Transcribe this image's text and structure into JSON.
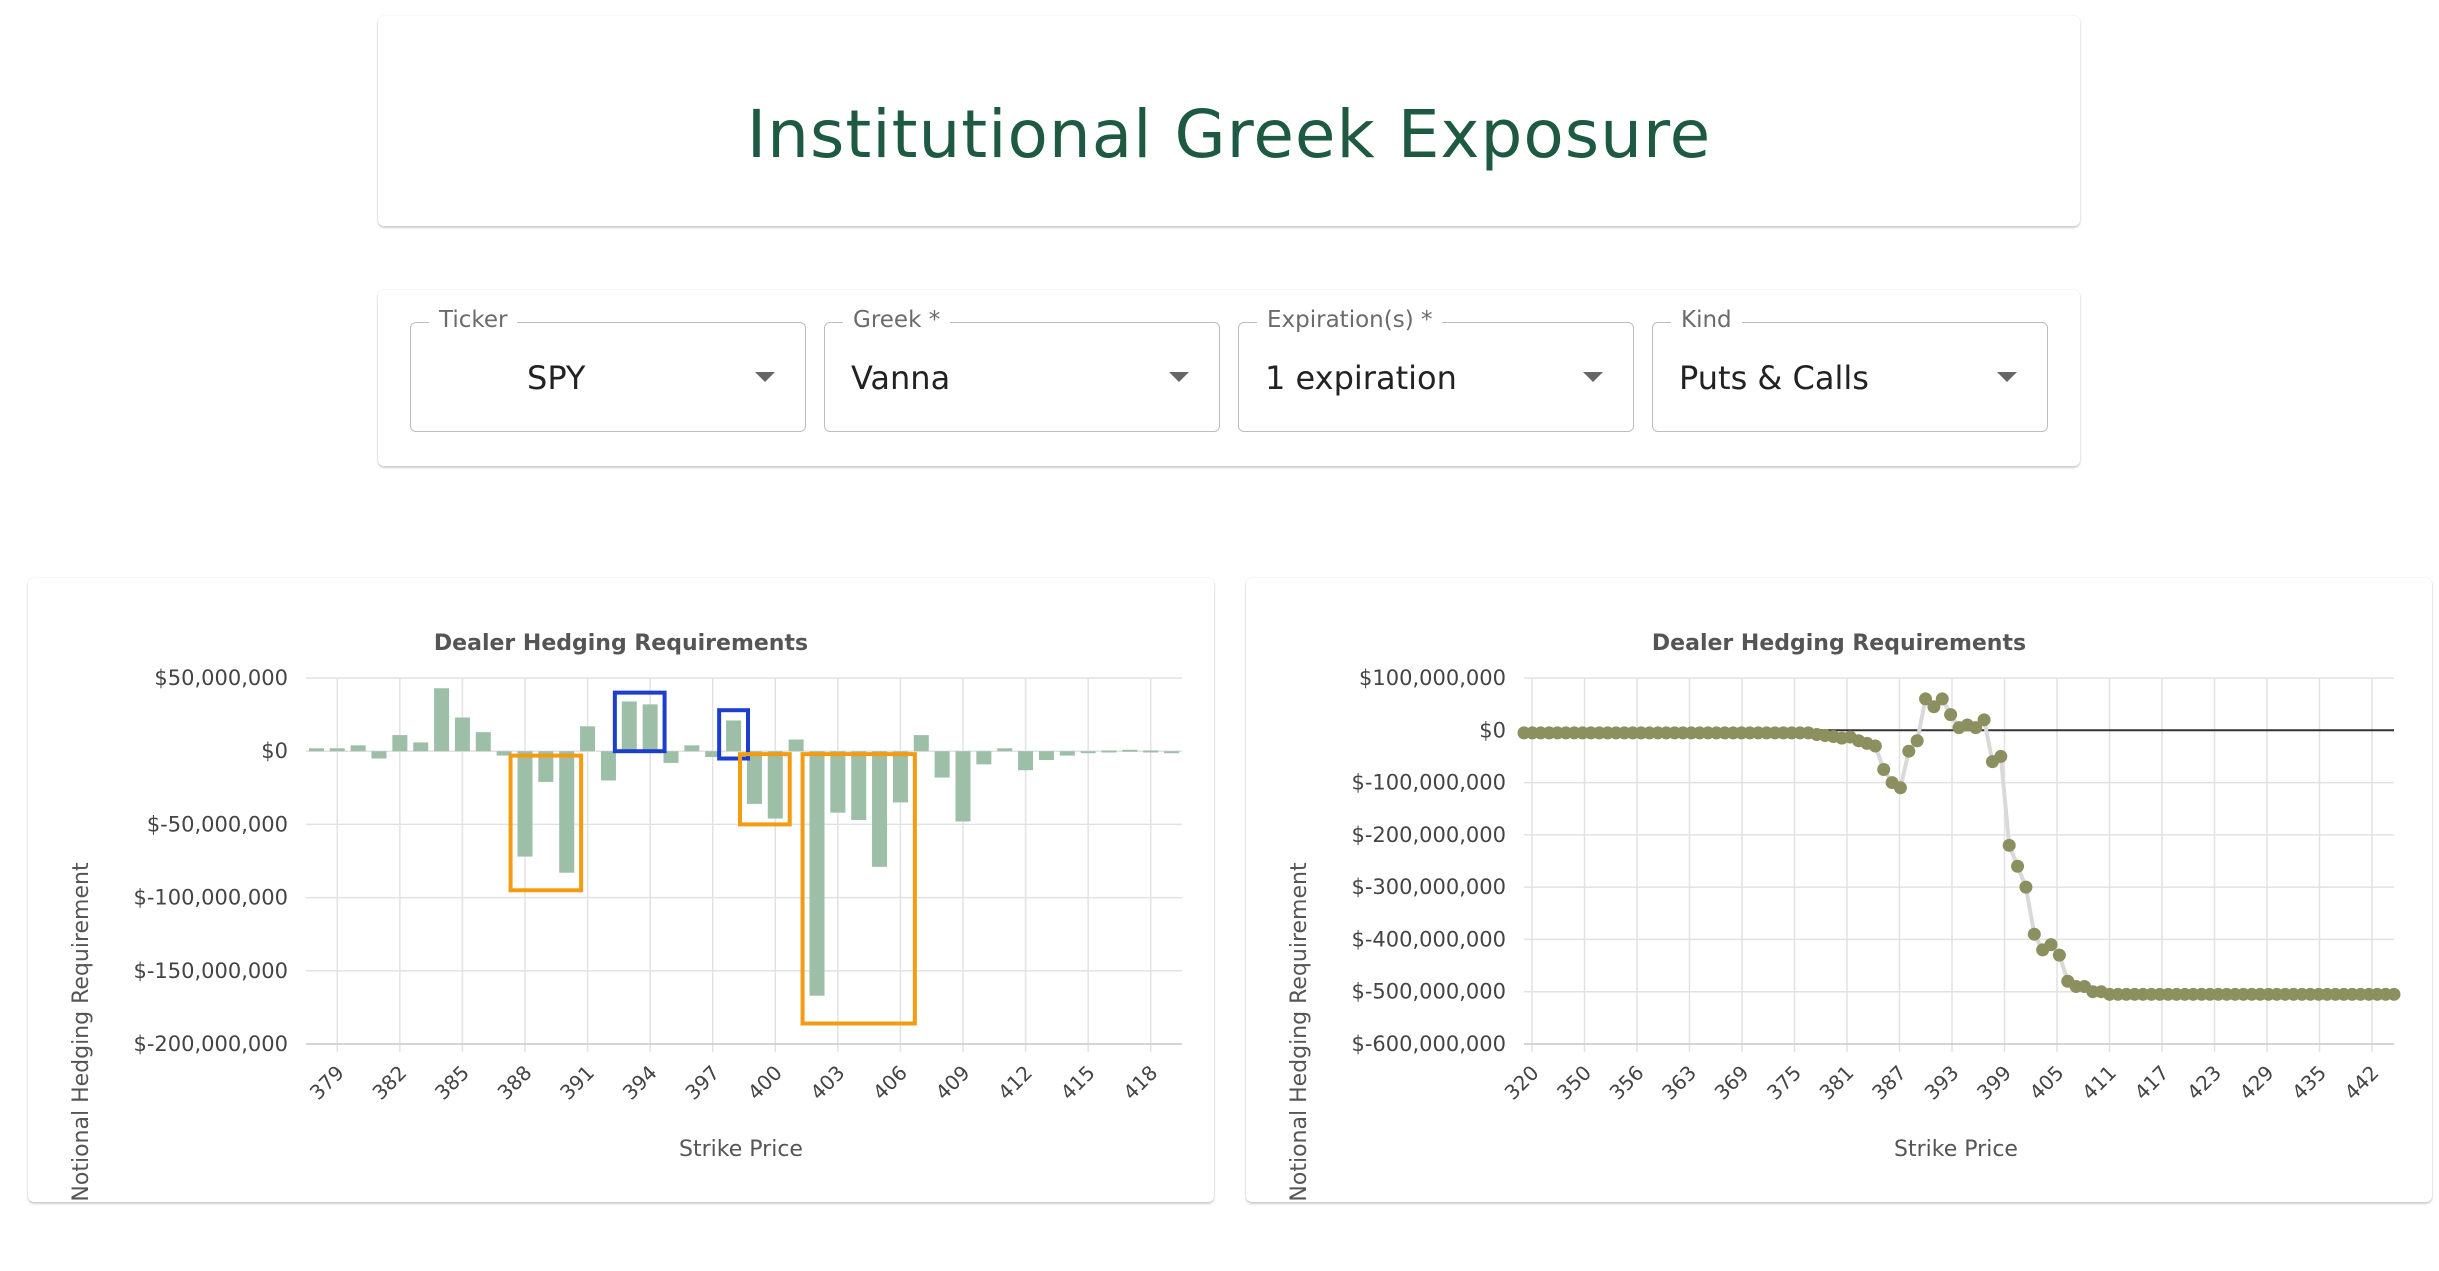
{
  "header": {
    "title": "Institutional Greek Exposure"
  },
  "controls": [
    {
      "label": "Ticker",
      "value": "SPY"
    },
    {
      "label": "Greek *",
      "value": "Vanna"
    },
    {
      "label": "Expiration(s) *",
      "value": "1 expiration"
    },
    {
      "label": "Kind",
      "value": "Puts & Calls"
    }
  ],
  "colors": {
    "title": "#1d5a41",
    "bar": "#9dbfa8",
    "point": "#8c8f5e",
    "highlight_orange": "#f39c12",
    "highlight_blue": "#1c3ecf"
  },
  "chart_data": [
    {
      "type": "bar",
      "title": "Dealer Hedging Requirements",
      "xlabel": "Strike Price",
      "ylabel": "Notional Hedging Requirement",
      "ylim": [
        -200000000,
        50000000
      ],
      "yticks": [
        "$50,000,000",
        "$0",
        "$-50,000,000",
        "$-100,000,000",
        "$-150,000,000",
        "$-200,000,000"
      ],
      "xtick_labels": [
        "379",
        "382",
        "385",
        "388",
        "391",
        "394",
        "397",
        "400",
        "403",
        "406",
        "409",
        "412",
        "415",
        "418"
      ],
      "categories": [
        378,
        379,
        380,
        381,
        382,
        383,
        384,
        385,
        386,
        387,
        388,
        389,
        390,
        391,
        392,
        393,
        394,
        395,
        396,
        397,
        398,
        399,
        400,
        401,
        402,
        403,
        404,
        405,
        406,
        407,
        408,
        409,
        410,
        411,
        412,
        413,
        414,
        415,
        416,
        417,
        418,
        419
      ],
      "values": [
        2000000,
        2000000,
        4000000,
        -5000000,
        11000000,
        6000000,
        43000000,
        23000000,
        13000000,
        -3000000,
        -72000000,
        -21000000,
        -83000000,
        17000000,
        -20000000,
        34000000,
        32000000,
        -8000000,
        4000000,
        -4000000,
        21000000,
        -36000000,
        -46000000,
        8000000,
        -167000000,
        -42000000,
        -47000000,
        -79000000,
        -35000000,
        11000000,
        -18000000,
        -48000000,
        -9000000,
        2000000,
        -13000000,
        -6000000,
        -3000000,
        -1000000,
        500000,
        1000000,
        500000,
        -500000
      ],
      "annotations": [
        {
          "color": "orange",
          "x_from": 388,
          "x_to": 390,
          "y_from": -95000000,
          "y_to": -3000000
        },
        {
          "color": "blue",
          "x_from": 393,
          "x_to": 394,
          "y_from": 0,
          "y_to": 40000000
        },
        {
          "color": "blue",
          "x_from": 398,
          "x_to": 398,
          "y_from": -5000000,
          "y_to": 28000000
        },
        {
          "color": "orange",
          "x_from": 399,
          "x_to": 400,
          "y_from": -50000000,
          "y_to": -2000000
        },
        {
          "color": "orange",
          "x_from": 402,
          "x_to": 406,
          "y_from": -186000000,
          "y_to": -2000000
        }
      ]
    },
    {
      "type": "scatter",
      "title": "Dealer Hedging Requirements",
      "xlabel": "Strike Price",
      "ylabel": "Notional Hedging Requirement",
      "ylim": [
        -600000000,
        100000000
      ],
      "yticks": [
        "$100,000,000",
        "$0",
        "$-100,000,000",
        "$-200,000,000",
        "$-300,000,000",
        "$-400,000,000",
        "$-500,000,000",
        "$-600,000,000"
      ],
      "xtick_labels": [
        "320",
        "350",
        "356",
        "363",
        "369",
        "375",
        "381",
        "387",
        "393",
        "399",
        "405",
        "411",
        "417",
        "423",
        "429",
        "435",
        "442"
      ],
      "values": [
        -5000000,
        -5000000,
        -5000000,
        -5000000,
        -5000000,
        -5000000,
        -5000000,
        -5000000,
        -5000000,
        -5000000,
        -5000000,
        -5000000,
        -5000000,
        -5000000,
        -5000000,
        -5000000,
        -5000000,
        -5000000,
        -5000000,
        -5000000,
        -5000000,
        -5000000,
        -5000000,
        -5000000,
        -5000000,
        -5000000,
        -5000000,
        -5000000,
        -5000000,
        -5000000,
        -5000000,
        -5000000,
        -5000000,
        -5000000,
        -5000000,
        -8000000,
        -10000000,
        -12000000,
        -15000000,
        -13000000,
        -20000000,
        -25000000,
        -30000000,
        -75000000,
        -100000000,
        -110000000,
        -40000000,
        -20000000,
        60000000,
        45000000,
        60000000,
        30000000,
        5000000,
        10000000,
        5000000,
        20000000,
        -60000000,
        -50000000,
        -220000000,
        -260000000,
        -300000000,
        -390000000,
        -420000000,
        -410000000,
        -430000000,
        -480000000,
        -490000000,
        -490000000,
        -500000000,
        -500000000,
        -505000000,
        -505000000,
        -505000000,
        -505000000,
        -505000000,
        -505000000,
        -505000000,
        -505000000,
        -505000000,
        -505000000,
        -505000000,
        -505000000,
        -505000000,
        -505000000,
        -505000000,
        -505000000,
        -505000000,
        -505000000,
        -505000000,
        -505000000,
        -505000000,
        -505000000,
        -505000000,
        -505000000,
        -505000000,
        -505000000,
        -505000000,
        -505000000,
        -505000000,
        -505000000,
        -505000000,
        -505000000,
        -505000000,
        -505000000,
        -505000000
      ]
    }
  ]
}
